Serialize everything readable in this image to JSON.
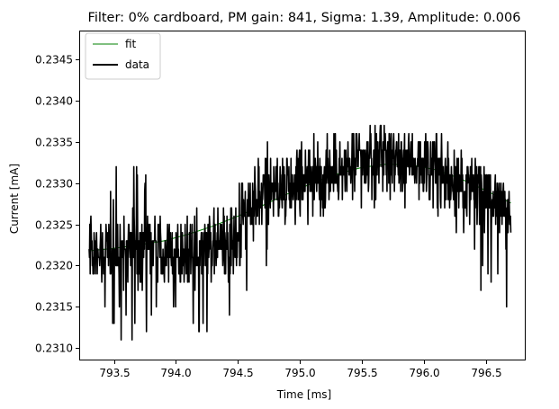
{
  "chart_data": {
    "type": "line",
    "title": "Filter: 0% cardboard, PM gain: 841, Sigma: 1.39, Amplitude: 0.006",
    "xlabel": "Time [ms]",
    "ylabel": "Current [mA]",
    "xlim": [
      793.22,
      796.82
    ],
    "ylim": [
      0.23085,
      0.23485
    ],
    "x_ticks": [
      793.5,
      794.0,
      794.5,
      795.0,
      795.5,
      796.0,
      796.5
    ],
    "x_tick_labels": [
      "793.5",
      "794.0",
      "794.5",
      "795.0",
      "795.5",
      "796.0",
      "796.5"
    ],
    "y_ticks": [
      0.231,
      0.2315,
      0.232,
      0.2325,
      0.233,
      0.2335,
      0.234,
      0.2345
    ],
    "y_tick_labels": [
      "0.2310",
      "0.2315",
      "0.2320",
      "0.2325",
      "0.2330",
      "0.2335",
      "0.2340",
      "0.2345"
    ],
    "grid": false,
    "legend_position": "top-left",
    "y_resolution": 0.0001,
    "series": [
      {
        "name": "fit",
        "color": "#008000",
        "style": "thin-line",
        "x": [
          793.3,
          793.5,
          793.7,
          793.9,
          794.1,
          794.3,
          794.5,
          794.7,
          794.9,
          795.1,
          795.3,
          795.5,
          795.7,
          795.9,
          796.1,
          796.3,
          796.5,
          796.7
        ],
        "y": [
          0.23218,
          0.23221,
          0.23225,
          0.2323,
          0.23238,
          0.23248,
          0.2326,
          0.23273,
          0.23287,
          0.233,
          0.23311,
          0.23319,
          0.23323,
          0.23322,
          0.23316,
          0.23305,
          0.23291,
          0.23276
        ]
      },
      {
        "name": "data",
        "color": "#000000",
        "style": "thick-line",
        "x_start": 793.3,
        "x_end": 796.7,
        "points": 1200,
        "envelope_x": [
          793.3,
          793.5,
          793.7,
          793.9,
          794.1,
          794.3,
          794.5,
          794.7,
          794.9,
          795.1,
          795.3,
          795.5,
          795.7,
          795.9,
          796.1,
          796.3,
          796.5,
          796.7
        ],
        "envelope_mid": [
          0.2322,
          0.2322,
          0.2322,
          0.23215,
          0.2321,
          0.23225,
          0.2323,
          0.23285,
          0.233,
          0.2331,
          0.2331,
          0.23325,
          0.2333,
          0.2333,
          0.2332,
          0.23295,
          0.23285,
          0.23265
        ],
        "envelope_lo": [
          0.2315,
          0.2311,
          0.231,
          0.2313,
          0.2312,
          0.2311,
          0.231,
          0.2318,
          0.2325,
          0.2325,
          0.2326,
          0.2326,
          0.2328,
          0.2327,
          0.2325,
          0.2324,
          0.2315,
          0.2315
        ],
        "envelope_hi": [
          0.2326,
          0.23315,
          0.2334,
          0.2325,
          0.23265,
          0.23285,
          0.233,
          0.2336,
          0.2334,
          0.2336,
          0.2336,
          0.23365,
          0.2337,
          0.2336,
          0.2336,
          0.2334,
          0.23315,
          0.2329
        ]
      }
    ]
  },
  "legend": {
    "fit_label": "fit",
    "data_label": "data"
  }
}
